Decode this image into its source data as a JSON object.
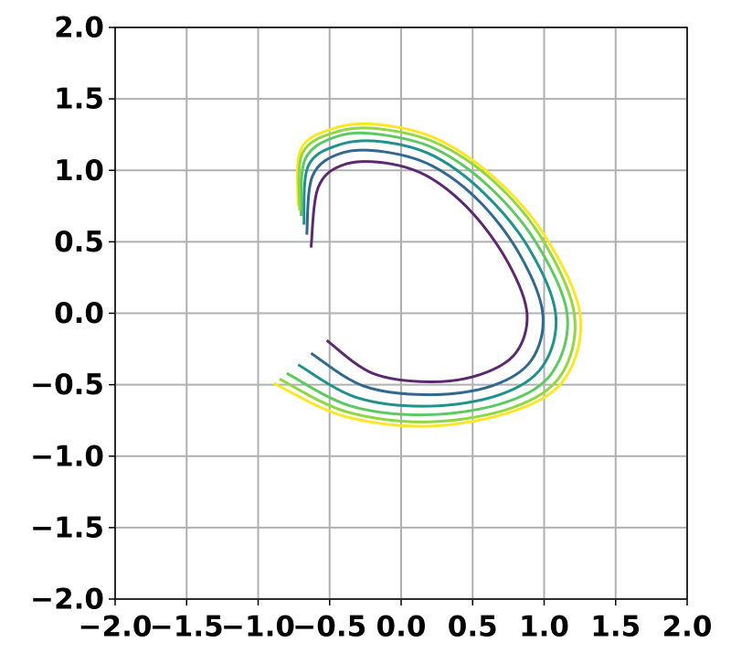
{
  "chart_data": {
    "type": "line",
    "xlim": [
      -2.0,
      2.0
    ],
    "ylim": [
      -2.0,
      2.0
    ],
    "xticks": [
      {
        "value": -2.0,
        "label": "−2.0"
      },
      {
        "value": -1.5,
        "label": "−1.5"
      },
      {
        "value": -1.0,
        "label": "−1.0"
      },
      {
        "value": -0.5,
        "label": "−0.5"
      },
      {
        "value": 0.0,
        "label": "0.0"
      },
      0.5,
      {
        "value": 1.0,
        "label": "1.0"
      },
      1.5,
      {
        "value": 2.0,
        "label": "2.0"
      }
    ],
    "yticks": [
      {
        "value": -2.0,
        "label": "−2.0"
      },
      {
        "value": -1.5,
        "label": "−1.5"
      },
      {
        "value": -1.0,
        "label": "−1.0"
      },
      {
        "value": -0.5,
        "label": "−0.5"
      },
      {
        "value": 0.0,
        "label": "0.0"
      },
      0.5,
      {
        "value": 1.0,
        "label": "1.0"
      },
      1.5,
      {
        "value": 2.0,
        "label": "2.0"
      }
    ],
    "grid": true,
    "series": [
      {
        "color": "#fde725",
        "x": [
          -0.72,
          -0.7,
          -0.45,
          -0.15,
          0.25,
          0.65,
          1.0,
          1.25,
          1.15,
          0.8,
          0.2,
          -0.4,
          -0.89
        ],
        "values": [
          0.75,
          1.15,
          1.3,
          1.32,
          1.22,
          0.95,
          0.55,
          0.0,
          -0.45,
          -0.68,
          -0.79,
          -0.72,
          -0.49
        ]
      },
      {
        "color": "#31688e",
        "x": [
          -0.66,
          -0.62,
          -0.42,
          -0.12,
          0.22,
          0.55,
          0.83,
          0.99,
          0.91,
          0.63,
          0.2,
          -0.26,
          -0.63
        ],
        "values": [
          0.55,
          0.96,
          1.12,
          1.13,
          1.03,
          0.78,
          0.41,
          0.0,
          -0.33,
          -0.51,
          -0.57,
          -0.51,
          -0.28
        ]
      },
      {
        "color": "#21918c",
        "x": [
          -0.68,
          -0.65,
          -0.43,
          -0.13,
          0.23,
          0.58,
          0.89,
          1.08,
          0.99,
          0.69,
          0.2,
          -0.31,
          -0.72
        ],
        "values": [
          0.62,
          1.03,
          1.18,
          1.2,
          1.1,
          0.84,
          0.46,
          0.0,
          -0.37,
          -0.57,
          -0.65,
          -0.59,
          -0.36
        ]
      },
      {
        "color": "#5ec962",
        "x": [
          -0.7,
          -0.67,
          -0.44,
          -0.14,
          0.24,
          0.61,
          0.94,
          1.16,
          1.06,
          0.74,
          0.2,
          -0.35,
          -0.8
        ],
        "values": [
          0.68,
          1.08,
          1.24,
          1.25,
          1.15,
          0.89,
          0.5,
          0.0,
          -0.41,
          -0.62,
          -0.71,
          -0.65,
          -0.42
        ]
      },
      {
        "color": "#90d743",
        "x": [
          -0.71,
          -0.69,
          -0.45,
          -0.15,
          0.25,
          0.64,
          0.98,
          1.21,
          1.12,
          0.78,
          0.2,
          -0.38,
          -0.85
        ],
        "values": [
          0.72,
          1.12,
          1.27,
          1.29,
          1.19,
          0.93,
          0.53,
          0.0,
          -0.43,
          -0.66,
          -0.76,
          -0.69,
          -0.46
        ]
      },
      {
        "color": "#5b2a6e",
        "x": [
          -0.63,
          -0.58,
          -0.4,
          -0.1,
          0.2,
          0.5,
          0.75,
          0.88,
          0.8,
          0.55,
          0.2,
          -0.2,
          -0.52
        ],
        "values": [
          0.46,
          0.88,
          1.04,
          1.05,
          0.95,
          0.7,
          0.35,
          0.0,
          -0.28,
          -0.43,
          -0.48,
          -0.42,
          -0.19
        ]
      }
    ]
  }
}
